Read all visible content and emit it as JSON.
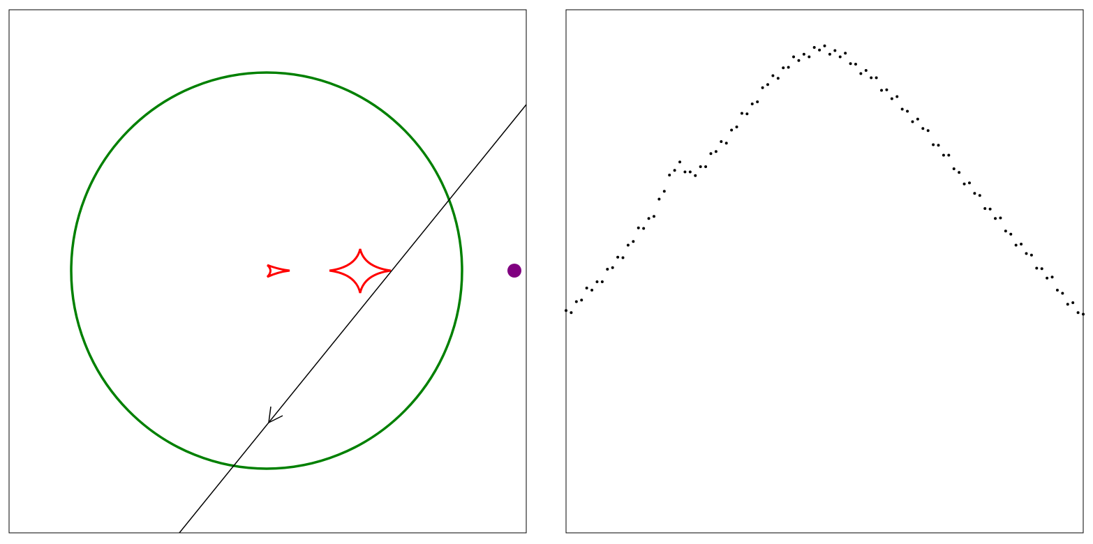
{
  "chart_data": {
    "type": "scatter",
    "x": [
      0,
      1,
      2,
      3,
      4,
      5,
      6,
      7,
      8,
      9,
      10,
      11,
      12,
      13,
      14,
      15,
      16,
      17,
      18,
      19,
      20,
      21,
      22,
      23,
      24,
      25,
      26,
      27,
      28,
      29,
      30,
      31,
      32,
      33,
      34,
      35,
      36,
      37,
      38,
      39,
      40,
      41,
      42,
      43,
      44,
      45,
      46,
      47,
      48,
      49,
      50,
      51,
      52,
      53,
      54,
      55,
      56,
      57,
      58,
      59,
      60,
      61,
      62,
      63,
      64,
      65,
      66,
      67,
      68,
      69,
      70,
      71,
      72,
      73,
      74,
      75,
      76,
      77,
      78,
      79,
      80,
      81,
      82,
      83,
      84,
      85,
      86,
      87,
      88,
      89,
      90,
      91,
      92,
      93,
      94,
      95,
      96,
      97,
      98,
      99,
      100
    ],
    "values": [
      42.5,
      42.1,
      44.2,
      44.5,
      46.8,
      46.4,
      48.0,
      48.0,
      50.4,
      50.7,
      52.7,
      52.6,
      55.0,
      55.7,
      58.3,
      58.2,
      60.1,
      60.5,
      63.8,
      65.3,
      68.4,
      69.3,
      70.9,
      69.0,
      69.0,
      68.3,
      70.0,
      70.0,
      72.5,
      72.9,
      74.8,
      74.5,
      77.0,
      77.6,
      80.2,
      80.1,
      82.0,
      82.4,
      85.1,
      85.7,
      87.4,
      86.9,
      88.9,
      89.0,
      91.0,
      90.3,
      91.5,
      91.0,
      92.8,
      92.3,
      93.1,
      91.5,
      92.2,
      91.0,
      91.7,
      89.7,
      89.6,
      87.8,
      88.4,
      87.0,
      87.0,
      84.6,
      84.7,
      83.0,
      83.4,
      81.0,
      80.6,
      78.6,
      79.1,
      77.3,
      76.9,
      74.2,
      74.1,
      72.2,
      72.2,
      69.6,
      68.9,
      66.7,
      66.9,
      64.9,
      64.5,
      62.0,
      61.9,
      60.1,
      60.2,
      57.7,
      57.1,
      55.0,
      55.2,
      53.4,
      53.1,
      50.6,
      50.5,
      48.7,
      48.9,
      46.4,
      45.8,
      43.7,
      44.0,
      42.1,
      41.8
    ],
    "xlim": [
      0,
      100
    ],
    "ylim": [
      0,
      100
    ],
    "color": "#000000"
  }
}
